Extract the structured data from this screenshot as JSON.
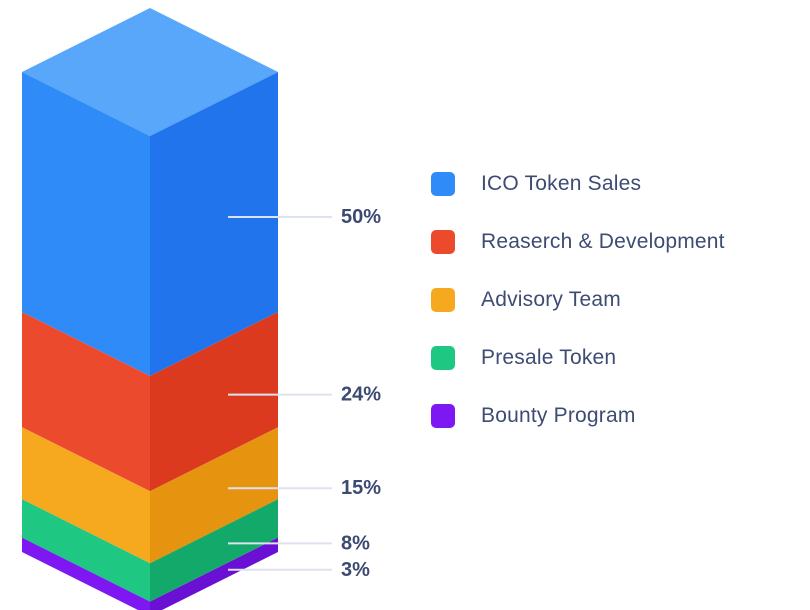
{
  "page": {
    "background_color": "#ffffff"
  },
  "chart_data": {
    "type": "bar",
    "subtype": "3d-isometric-stacked-column",
    "title": "",
    "unit": "%",
    "total": 100,
    "categories": [
      "ICO Token Sales",
      "Reaserch & Development",
      "Advisory Team",
      "Presale Token",
      "Bounty Program"
    ],
    "values": [
      50,
      24,
      15,
      8,
      3
    ],
    "segments": [
      {
        "label": "ICO Token Sales",
        "value": 50,
        "value_label": "50%",
        "color": "#2e8bf8",
        "color_top": "#58a7fb",
        "color_right": "#2274ec"
      },
      {
        "label": "Reaserch & Development",
        "value": 24,
        "value_label": "24%",
        "color": "#ec4a2d",
        "color_top": "#f4765f",
        "color_right": "#db3a1e"
      },
      {
        "label": "Advisory Team",
        "value": 15,
        "value_label": "15%",
        "color": "#f6a91e",
        "color_top": "#f9c052",
        "color_right": "#e69310"
      },
      {
        "label": "Presale Token",
        "value": 8,
        "value_label": "8%",
        "color": "#1ec782",
        "color_top": "#4fd8a0",
        "color_right": "#12a96a"
      },
      {
        "label": "Bounty Program",
        "value": 3,
        "value_label": "3%",
        "color": "#7d18f3",
        "color_top": "#9a4bf7",
        "color_right": "#6a0fd4"
      }
    ],
    "callout": {
      "line_color": "#dde2ef",
      "label_color": "#3c4a72"
    },
    "legend_position": "right",
    "grid": false
  }
}
